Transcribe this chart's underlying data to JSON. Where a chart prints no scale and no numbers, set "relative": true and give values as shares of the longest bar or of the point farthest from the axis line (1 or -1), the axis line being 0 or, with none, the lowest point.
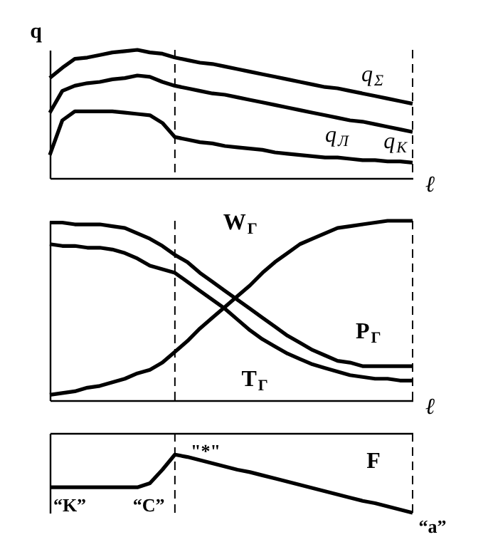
{
  "chart_data": [
    {
      "type": "line",
      "relative": true,
      "ylabel": "q",
      "xlabel": "ℓ",
      "legend": false,
      "marker": "none",
      "line_style": "solid",
      "categories": [
        null,
        null,
        null,
        null,
        null,
        null,
        null,
        null,
        null,
        null,
        null,
        null,
        null,
        null,
        null,
        null,
        null,
        null,
        null,
        null,
        null,
        null,
        null,
        null,
        null,
        null,
        null,
        null,
        null,
        null
      ],
      "series": [
        {
          "name": "q$_{Σ}$",
          "color": "#000000",
          "values": [
            0.78,
            0.86,
            0.93,
            0.94,
            0.96,
            0.98,
            0.99,
            1,
            0.98,
            0.97,
            0.94,
            0.92,
            0.9,
            0.89,
            0.87,
            0.85,
            0.83,
            0.81,
            0.79,
            0.77,
            0.75,
            0.73,
            0.71,
            0.7,
            0.68,
            0.66,
            0.64,
            0.62,
            0.6,
            0.58
          ]
        },
        {
          "name": "q$_{К}$",
          "color": "#000000",
          "values": [
            0.51,
            0.68,
            0.72,
            0.74,
            0.75,
            0.77,
            0.78,
            0.8,
            0.79,
            0.75,
            0.72,
            0.7,
            0.68,
            0.66,
            0.65,
            0.63,
            0.61,
            0.59,
            0.57,
            0.55,
            0.53,
            0.51,
            0.49,
            0.47,
            0.45,
            0.44,
            0.42,
            0.4,
            0.38,
            0.36
          ]
        },
        {
          "name": "q$_{Л}$",
          "color": "#000000",
          "values": [
            0.18,
            0.45,
            0.52,
            0.52,
            0.52,
            0.52,
            0.51,
            0.5,
            0.49,
            0.43,
            0.32,
            0.3,
            0.28,
            0.27,
            0.25,
            0.24,
            0.23,
            0.22,
            0.2,
            0.19,
            0.18,
            0.17,
            0.16,
            0.16,
            0.15,
            0.14,
            0.14,
            0.13,
            0.13,
            0.12
          ]
        }
      ]
    },
    {
      "type": "line",
      "relative": true,
      "xlabel": "ℓ",
      "legend": false,
      "marker": "none",
      "line_style": "solid",
      "categories": [
        null,
        null,
        null,
        null,
        null,
        null,
        null,
        null,
        null,
        null,
        null,
        null,
        null,
        null,
        null,
        null,
        null,
        null,
        null,
        null,
        null,
        null,
        null,
        null,
        null,
        null,
        null,
        null,
        null,
        null
      ],
      "series": [
        {
          "name": "W$_{Г}$",
          "color": "#000000",
          "values": [
            0.03,
            0.04,
            0.05,
            0.07,
            0.08,
            0.1,
            0.12,
            0.15,
            0.17,
            0.21,
            0.27,
            0.33,
            0.4,
            0.46,
            0.52,
            0.58,
            0.64,
            0.71,
            0.77,
            0.82,
            0.87,
            0.9,
            0.93,
            0.96,
            0.97,
            0.98,
            0.99,
            1,
            1,
            1
          ]
        },
        {
          "name": "P$_{Г}$",
          "color": "#000000",
          "values": [
            0.99,
            0.99,
            0.98,
            0.98,
            0.98,
            0.97,
            0.96,
            0.93,
            0.9,
            0.86,
            0.81,
            0.77,
            0.71,
            0.66,
            0.61,
            0.56,
            0.51,
            0.46,
            0.41,
            0.36,
            0.32,
            0.28,
            0.25,
            0.22,
            0.21,
            0.19,
            0.19,
            0.19,
            0.19,
            0.19
          ]
        },
        {
          "name": "T$_{Г}$",
          "color": "#000000",
          "values": [
            0.87,
            0.86,
            0.86,
            0.85,
            0.85,
            0.84,
            0.82,
            0.79,
            0.75,
            0.73,
            0.71,
            0.66,
            0.61,
            0.56,
            0.51,
            0.45,
            0.39,
            0.34,
            0.3,
            0.26,
            0.23,
            0.2,
            0.18,
            0.16,
            0.14,
            0.13,
            0.12,
            0.12,
            0.11,
            0.11
          ]
        }
      ]
    },
    {
      "type": "line",
      "relative": true,
      "legend": false,
      "marker": "none",
      "line_style": "solid",
      "categories": [
        null,
        null,
        null,
        null,
        null,
        null,
        null,
        null,
        null,
        null,
        null,
        null,
        null,
        null,
        null,
        null,
        null,
        null,
        null,
        null,
        null,
        null,
        null,
        null,
        null,
        null,
        null,
        null,
        null,
        null
      ],
      "series": [
        {
          "name": "F",
          "color": "#000000",
          "values": [
            -0.68,
            -0.68,
            -0.68,
            -0.68,
            -0.68,
            -0.68,
            -0.68,
            -0.68,
            -0.63,
            -0.46,
            -0.27,
            -0.3,
            -0.34,
            -0.38,
            -0.42,
            -0.46,
            -0.49,
            -0.53,
            -0.57,
            -0.61,
            -0.65,
            -0.69,
            -0.73,
            -0.77,
            -0.81,
            -0.85,
            -0.88,
            -0.92,
            -0.96,
            -1
          ]
        }
      ],
      "annotations": [
        "“K”",
        "“C”",
        "\"*\"",
        "“a”"
      ]
    }
  ]
}
